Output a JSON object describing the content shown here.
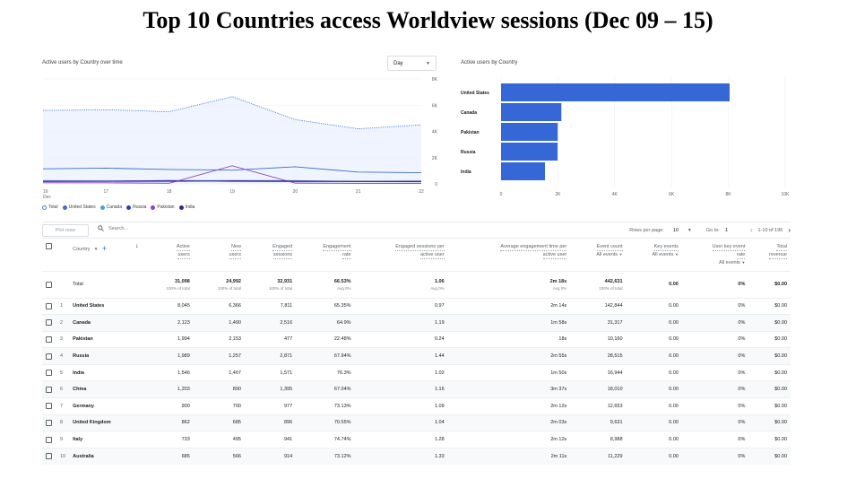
{
  "page_title": "Top 10 Countries access Worldview sessions (Dec 09 – 15)",
  "line_card": {
    "title": "Active users by Country over time",
    "dropdown": "Day",
    "y_ticks": [
      "8K",
      "6K",
      "4K",
      "2K",
      "0"
    ],
    "x_ticks": [
      "16",
      "17",
      "18",
      "19",
      "20",
      "21",
      "22"
    ],
    "x_sub": "Dec",
    "legend": [
      "Total",
      "United States",
      "Canada",
      "Russia",
      "Pakistan",
      "India"
    ],
    "colors": {
      "total": "#4a7fdc",
      "us": "#3a6fc8",
      "canada": "#4b9fd8",
      "russia": "#2e3cad",
      "pakistan": "#8e3fc6",
      "india": "#4b1c86"
    }
  },
  "bar_card": {
    "title": "Active users by Country",
    "x_ticks": [
      "0",
      "2K",
      "4K",
      "6K",
      "8K",
      "10K"
    ],
    "color": "#3568d6"
  },
  "chart_data": [
    {
      "type": "line",
      "x": [
        "16",
        "17",
        "18",
        "19",
        "20",
        "21",
        "22"
      ],
      "ylim": [
        0,
        8000
      ],
      "series": [
        {
          "name": "Total",
          "values": [
            5600,
            5650,
            5500,
            6650,
            4900,
            4200,
            4500
          ]
        },
        {
          "name": "United States",
          "values": [
            1150,
            1200,
            1100,
            1050,
            1300,
            900,
            850
          ]
        },
        {
          "name": "Canada",
          "values": [
            250,
            230,
            240,
            260,
            250,
            200,
            220
          ]
        },
        {
          "name": "Russia",
          "values": [
            180,
            200,
            260,
            190,
            180,
            170,
            160
          ]
        },
        {
          "name": "Pakistan",
          "values": [
            80,
            80,
            50,
            1380,
            60,
            40,
            40
          ]
        },
        {
          "name": "India",
          "values": [
            200,
            190,
            190,
            230,
            210,
            190,
            200
          ]
        }
      ]
    },
    {
      "type": "bar",
      "categories": [
        "United States",
        "Canada",
        "Pakistan",
        "Russia",
        "India"
      ],
      "values": [
        8045,
        2123,
        1994,
        1989,
        1546
      ],
      "xlim": [
        0,
        10000
      ]
    }
  ],
  "toolbar": {
    "plot_rows": "Plot rows",
    "search_placeholder": "Search...",
    "rows_per_page_label": "Rows per page:",
    "rows_per_page": "10",
    "goto_label": "Go to:",
    "goto_value": "1",
    "range": "1-10 of 196"
  },
  "table": {
    "col_country": "Country",
    "headers": [
      {
        "l1": "Active",
        "l2": "users"
      },
      {
        "l1": "New",
        "l2": "users"
      },
      {
        "l1": "Engaged",
        "l2": "sessions"
      },
      {
        "l1": "Engagement",
        "l2": "rate"
      },
      {
        "l1": "Engaged sessions per",
        "l2": "active user"
      },
      {
        "l1": "Average engagement time per",
        "l2": "active user"
      },
      {
        "l1": "Event count",
        "l2": "",
        "sub": "All events"
      },
      {
        "l1": "Key events",
        "l2": "",
        "sub": "All events"
      },
      {
        "l1": "User key event",
        "l2": "rate",
        "sub": "All events"
      },
      {
        "l1": "Total",
        "l2": "revenue"
      }
    ],
    "total": {
      "label": "Total",
      "values": [
        "31,098",
        "24,992",
        "32,931",
        "66.53%",
        "1.06",
        "2m 18s",
        "442,631",
        "0.00",
        "0%",
        "$0.00"
      ],
      "subs": [
        "100% of total",
        "100% of total",
        "100% of total",
        "Avg 0%",
        "Avg 0%",
        "Avg 0%",
        "100% of total",
        "",
        "",
        ""
      ]
    },
    "rows": [
      {
        "n": "1",
        "country": "United States",
        "values": [
          "8,045",
          "6,366",
          "7,811",
          "65.35%",
          "0.97",
          "2m 14s",
          "142,844",
          "0.00",
          "0%",
          "$0.00"
        ]
      },
      {
        "n": "2",
        "country": "Canada",
        "values": [
          "2,123",
          "1,490",
          "2,516",
          "64.9%",
          "1.19",
          "1m 58s",
          "31,317",
          "0.00",
          "0%",
          "$0.00"
        ]
      },
      {
        "n": "3",
        "country": "Pakistan",
        "values": [
          "1,994",
          "2,153",
          "477",
          "22.48%",
          "0.24",
          "18s",
          "10,160",
          "0.00",
          "0%",
          "$0.00"
        ]
      },
      {
        "n": "4",
        "country": "Russia",
        "values": [
          "1,989",
          "1,257",
          "2,871",
          "67.94%",
          "1.44",
          "2m 55s",
          "28,515",
          "0.00",
          "0%",
          "$0.00"
        ]
      },
      {
        "n": "5",
        "country": "India",
        "values": [
          "1,546",
          "1,407",
          "1,571",
          "76.3%",
          "1.02",
          "1m 50s",
          "16,944",
          "0.00",
          "0%",
          "$0.00"
        ]
      },
      {
        "n": "6",
        "country": "China",
        "values": [
          "1,203",
          "890",
          "1,395",
          "67.04%",
          "1.16",
          "3m 37s",
          "18,010",
          "0.00",
          "0%",
          "$0.00"
        ]
      },
      {
        "n": "7",
        "country": "Germany",
        "values": [
          "900",
          "700",
          "977",
          "73.13%",
          "1.09",
          "2m 12s",
          "12,653",
          "0.00",
          "0%",
          "$0.00"
        ]
      },
      {
        "n": "8",
        "country": "United Kingdom",
        "values": [
          "862",
          "685",
          "896",
          "70.55%",
          "1.04",
          "2m 03s",
          "9,631",
          "0.00",
          "0%",
          "$0.00"
        ]
      },
      {
        "n": "9",
        "country": "Italy",
        "values": [
          "733",
          "495",
          "941",
          "74.74%",
          "1.28",
          "2m 12s",
          "8,988",
          "0.00",
          "0%",
          "$0.00"
        ]
      },
      {
        "n": "10",
        "country": "Australia",
        "values": [
          "685",
          "566",
          "914",
          "73.12%",
          "1.33",
          "2m 11s",
          "11,229",
          "0.00",
          "0%",
          "$0.00"
        ]
      }
    ]
  }
}
